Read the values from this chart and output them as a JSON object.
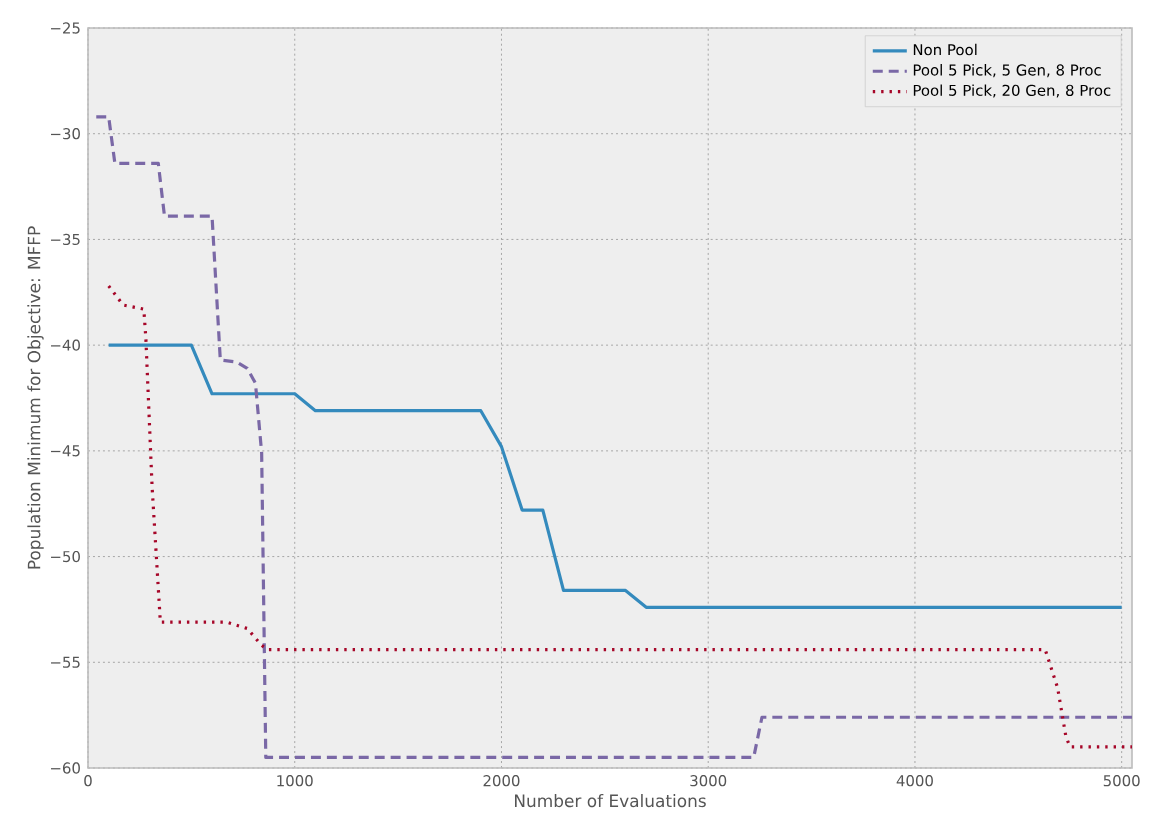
{
  "chart_data": {
    "type": "line",
    "xlabel": "Number of Evaluations",
    "ylabel": "Population Minimum for Objective: MFFP",
    "xlim": [
      0,
      5050
    ],
    "ylim": [
      -60,
      -25
    ],
    "xticks": [
      0,
      1000,
      2000,
      3000,
      4000,
      5000
    ],
    "yticks": [
      {
        "value": -60,
        "label": "−60"
      },
      {
        "value": -55,
        "label": "−55"
      },
      {
        "value": -50,
        "label": "−50"
      },
      {
        "value": -45,
        "label": "−45"
      },
      {
        "value": -40,
        "label": "−40"
      },
      {
        "value": -35,
        "label": "−35"
      },
      {
        "value": -30,
        "label": "−30"
      },
      {
        "value": -25,
        "label": "−25"
      }
    ],
    "grid": true,
    "legend": "top right",
    "marker": "none",
    "series": [
      {
        "name": "Non Pool",
        "color": "#348abd",
        "line_style": "solid",
        "x": [
          100,
          500,
          600,
          1000,
          1100,
          1900,
          2000,
          2100,
          2200,
          2300,
          2600,
          2700,
          5000
        ],
        "values": [
          -40,
          -40,
          -42.3,
          -42.3,
          -43.1,
          -43.1,
          -44.8,
          -47.8,
          -47.8,
          -51.6,
          -51.6,
          -52.4,
          -52.4
        ]
      },
      {
        "name": "Pool 5 Pick, 5 Gen, 8 Proc",
        "color": "#7a68a6",
        "line_style": "dashed",
        "x": [
          40,
          100,
          130,
          340,
          370,
          600,
          640,
          720,
          770,
          810,
          840,
          860,
          3220,
          3260,
          5050
        ],
        "values": [
          -29.2,
          -29.2,
          -31.4,
          -31.4,
          -33.9,
          -33.9,
          -40.7,
          -40.8,
          -41.1,
          -41.8,
          -45.1,
          -59.5,
          -59.5,
          -57.6,
          -57.6
        ]
      },
      {
        "name": "Pool 5 Pick, 20 Gen, 8 Proc",
        "color": "#a60628",
        "line_style": "dotted",
        "x": [
          100,
          170,
          270,
          280,
          310,
          350,
          670,
          770,
          840,
          870,
          4630,
          4650,
          4690,
          4730,
          4750,
          5050
        ],
        "values": [
          -37.2,
          -38.1,
          -38.3,
          -39.7,
          -46.7,
          -53.1,
          -53.1,
          -53.4,
          -54.2,
          -54.4,
          -54.4,
          -55.0,
          -56.2,
          -58.5,
          -59.0,
          -59.0
        ]
      }
    ]
  }
}
